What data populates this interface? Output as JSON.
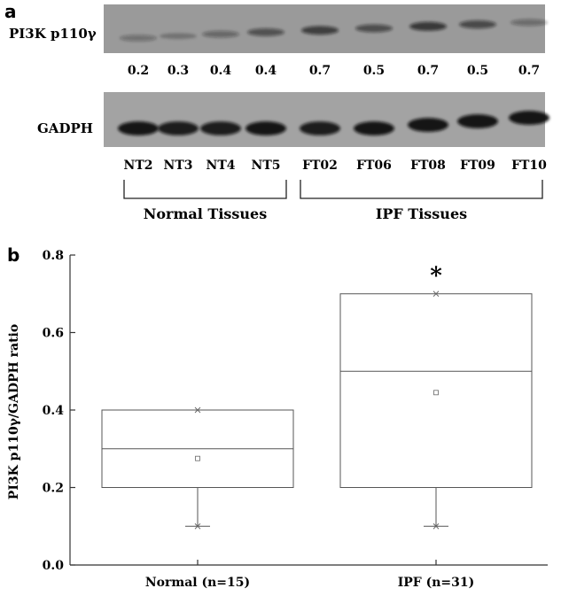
{
  "panel_a": {
    "letter": "a",
    "target_label": "PI3K p110γ",
    "ratios": [
      "0.2",
      "0.3",
      "0.4",
      "0.4",
      "0.7",
      "0.5",
      "0.7",
      "0.5",
      "0.7"
    ],
    "target_band_intensity": [
      0.25,
      0.15,
      0.35,
      0.55,
      0.75,
      0.6,
      0.8,
      0.65,
      0.3
    ],
    "loading_label": "GADPH",
    "loading_band_intensity": [
      0.95,
      0.9,
      0.9,
      0.95,
      0.9,
      0.95,
      0.95,
      0.95,
      0.95
    ],
    "lanes": [
      "NT2",
      "NT3",
      "NT4",
      "NT5",
      "FT02",
      "FT06",
      "FT08",
      "FT09",
      "FT10"
    ],
    "groups": [
      {
        "label": "Normal Tissues",
        "lanes": [
          0,
          3
        ]
      },
      {
        "label": "IPF Tissues",
        "lanes": [
          4,
          8
        ]
      }
    ],
    "colors": {
      "blot_bg": "#9a9a9a",
      "band": "#141414"
    }
  },
  "panel_b": {
    "letter": "b",
    "chart_data": {
      "type": "box",
      "title": "",
      "ylabel": "PI3K p110γ/GADPH  ratio",
      "xlabel": "",
      "ylim": [
        0.0,
        0.8
      ],
      "yticks": [
        "0.0",
        "0.2",
        "0.4",
        "0.6",
        "0.8"
      ],
      "categories": [
        "Normal  (n=15)",
        "IPF  (n=31)"
      ],
      "boxes": [
        {
          "q1": 0.2,
          "median": 0.3,
          "q3": 0.4,
          "whisker_low": 0.1,
          "mean": 0.275,
          "max_marker": 0.4,
          "min_marker": 0.1
        },
        {
          "q1": 0.2,
          "median": 0.5,
          "q3": 0.7,
          "whisker_low": 0.1,
          "mean": 0.445,
          "max_marker": 0.7,
          "min_marker": 0.1
        }
      ],
      "annotations": [
        {
          "category": 1,
          "text": "*"
        }
      ],
      "grid": false
    }
  }
}
